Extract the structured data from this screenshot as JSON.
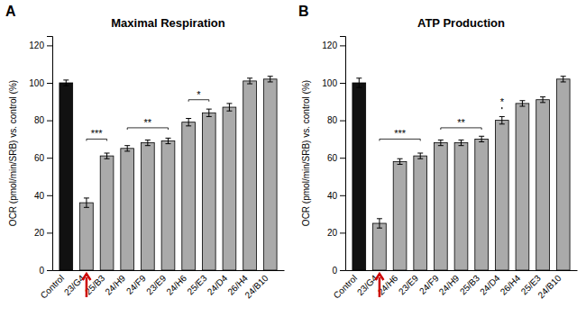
{
  "chart_data": [
    {
      "type": "bar",
      "panel_label": "A",
      "title": "Maximal Respiration",
      "categories": [
        "Control",
        "23/G4",
        "25/B3",
        "24/H9",
        "24/F9",
        "23/E9",
        "24/H6",
        "25/E3",
        "24/D4",
        "26/H4",
        "24/B10"
      ],
      "values": [
        100,
        36,
        61,
        65,
        68,
        69,
        79,
        84,
        87,
        101,
        102
      ],
      "errors": [
        1.5,
        2.5,
        1.5,
        1.5,
        1.5,
        1.5,
        2.0,
        2.0,
        2.0,
        1.5,
        1.5
      ],
      "colors": [
        "#111111",
        "#aaaaaa",
        "#aaaaaa",
        "#aaaaaa",
        "#aaaaaa",
        "#aaaaaa",
        "#aaaaaa",
        "#aaaaaa",
        "#aaaaaa",
        "#aaaaaa",
        "#aaaaaa"
      ],
      "ylabel": "OCR (pmol/min/SRB) vs. control (%)",
      "ylim": [
        0,
        125
      ],
      "yticks": [
        0,
        20,
        40,
        60,
        80,
        100,
        120
      ],
      "grid": false,
      "annotations": [
        {
          "type": "bracket",
          "x1": "23/G4",
          "x2": "25/B3",
          "y": 70,
          "text": "***"
        },
        {
          "type": "bracket",
          "x1": "24/H9",
          "x2": "23/E9",
          "y": 76,
          "text": "**"
        },
        {
          "type": "bracket",
          "x1": "24/H6",
          "x2": "25/E3",
          "y": 91,
          "text": "*"
        },
        {
          "type": "arrow",
          "x": "23/G4",
          "color": "#cc0000"
        }
      ]
    },
    {
      "type": "bar",
      "panel_label": "B",
      "title": "ATP Production",
      "categories": [
        "Control",
        "23/G4",
        "24/H6",
        "23/E9",
        "24/F9",
        "24/H9",
        "25/B3",
        "24/D4",
        "26/H4",
        "25/E3",
        "24/B10"
      ],
      "values": [
        100,
        25,
        58,
        61,
        68,
        68,
        70,
        80,
        89,
        91,
        102
      ],
      "errors": [
        2.5,
        2.5,
        1.5,
        1.5,
        1.5,
        1.5,
        1.5,
        2.0,
        1.5,
        1.5,
        1.5
      ],
      "colors": [
        "#111111",
        "#aaaaaa",
        "#aaaaaa",
        "#aaaaaa",
        "#aaaaaa",
        "#aaaaaa",
        "#aaaaaa",
        "#aaaaaa",
        "#aaaaaa",
        "#aaaaaa",
        "#aaaaaa"
      ],
      "ylabel": "OCR (pmol/min/SRB) vs. control (%)",
      "ylim": [
        0,
        125
      ],
      "yticks": [
        0,
        20,
        40,
        60,
        80,
        100,
        120
      ],
      "grid": false,
      "annotations": [
        {
          "type": "bracket",
          "x1": "23/G4",
          "x2": "23/E9",
          "y": 70,
          "text": "***"
        },
        {
          "type": "bracket",
          "x1": "24/F9",
          "x2": "25/B3",
          "y": 76,
          "text": "**"
        },
        {
          "type": "bracket",
          "x1": "24/D4",
          "x2": "24/D4",
          "y": 87,
          "text": "*"
        },
        {
          "type": "arrow",
          "x": "23/G4",
          "color": "#cc0000"
        }
      ]
    }
  ]
}
